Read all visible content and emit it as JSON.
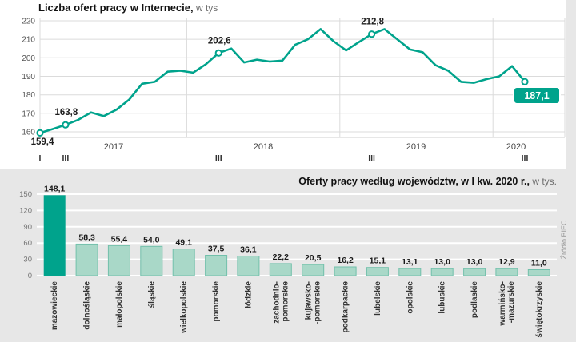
{
  "colors": {
    "teal": "#00A38C",
    "bar_fill": "#A9D8C8",
    "bar_stroke": "#72C0AB",
    "grid_line": "#DBDBDB",
    "white_grid": "#FFFFFF",
    "axis_line": "#CFCFCF",
    "text_dark": "#1A1A1A",
    "text_mid": "#444444",
    "text_gray": "#777777",
    "badge_text": "#FFFFFF"
  },
  "line_chart": {
    "title": "Liczba ofert pracy w Internecie,",
    "title_suffix": " w tys",
    "y_ticks": [
      220,
      210,
      200,
      190,
      180,
      170,
      160
    ],
    "years": [
      "2017",
      "2018",
      "2019",
      "2020"
    ],
    "x_ticks": [
      {
        "label": "I",
        "month": 0
      },
      {
        "label": "III",
        "month": 2
      },
      {
        "label": "III",
        "month": 14
      },
      {
        "label": "III",
        "month": 26
      },
      {
        "label": "III",
        "month": 38
      }
    ],
    "values": [
      159.4,
      161.5,
      163.8,
      166.5,
      170.5,
      168.5,
      172.0,
      177.5,
      186.0,
      187.0,
      192.5,
      193.0,
      192.0,
      196.5,
      202.6,
      205.0,
      197.5,
      199.0,
      198.0,
      198.5,
      207.0,
      210.0,
      215.5,
      209.0,
      204.0,
      208.5,
      212.8,
      215.5,
      210.0,
      204.5,
      203.0,
      196.0,
      193.0,
      187.0,
      186.5,
      188.5,
      190.0,
      195.5,
      187.1
    ],
    "annotations": [
      {
        "index": 0,
        "label": "159,4",
        "placement": "below"
      },
      {
        "index": 2,
        "label": "163,8",
        "placement": "above"
      },
      {
        "index": 14,
        "label": "202,6",
        "placement": "above"
      },
      {
        "index": 26,
        "label": "212,8",
        "placement": "above"
      },
      {
        "index": 38,
        "label": "187,1",
        "placement": "badge"
      }
    ]
  },
  "bar_chart": {
    "title": "Oferty pracy według województw, w I kw. 2020 r.,",
    "title_suffix": " w tys.",
    "y_ticks": [
      150,
      120,
      90,
      60,
      30,
      0
    ],
    "source": "Źródło BIEC",
    "bars": [
      {
        "name": [
          "mazowieckie"
        ],
        "value": 148.1,
        "label": "148,1",
        "highlight": true
      },
      {
        "name": [
          "dolnośląskie"
        ],
        "value": 58.3,
        "label": "58,3"
      },
      {
        "name": [
          "małopolskie"
        ],
        "value": 55.4,
        "label": "55,4"
      },
      {
        "name": [
          "śląskie"
        ],
        "value": 54.0,
        "label": "54,0"
      },
      {
        "name": [
          "wielkopolskie"
        ],
        "value": 49.1,
        "label": "49,1"
      },
      {
        "name": [
          "pomorskie"
        ],
        "value": 37.5,
        "label": "37,5"
      },
      {
        "name": [
          "łódzkie"
        ],
        "value": 36.1,
        "label": "36,1"
      },
      {
        "name": [
          "zachodnio-",
          "pomorskie"
        ],
        "value": 22.2,
        "label": "22,2"
      },
      {
        "name": [
          "kujawsko-",
          "-pomorskie"
        ],
        "value": 20.5,
        "label": "20,5"
      },
      {
        "name": [
          "podkarpackie"
        ],
        "value": 16.2,
        "label": "16,2"
      },
      {
        "name": [
          "lubelskie"
        ],
        "value": 15.1,
        "label": "15,1"
      },
      {
        "name": [
          "opolskie"
        ],
        "value": 13.1,
        "label": "13,1"
      },
      {
        "name": [
          "lubuskie"
        ],
        "value": 13.0,
        "label": "13,0"
      },
      {
        "name": [
          "podlaskie"
        ],
        "value": 13.0,
        "label": "13,0"
      },
      {
        "name": [
          "warmińsko-",
          "-mazurskie"
        ],
        "value": 12.9,
        "label": "12,9"
      },
      {
        "name": [
          "świętokrzyskie"
        ],
        "value": 11.0,
        "label": "11,0"
      }
    ]
  },
  "chart_data": [
    {
      "type": "line",
      "title": "Liczba ofert pracy w Internecie, w tys",
      "x": "monthly, Jan 2017 - Mar 2020",
      "series": [
        {
          "name": "oferty pracy (tys.)",
          "values": [
            159.4,
            161.5,
            163.8,
            166.5,
            170.5,
            168.5,
            172.0,
            177.5,
            186.0,
            187.0,
            192.5,
            193.0,
            192.0,
            196.5,
            202.6,
            205.0,
            197.5,
            199.0,
            198.0,
            198.5,
            207.0,
            210.0,
            215.5,
            209.0,
            204.0,
            208.5,
            212.8,
            215.5,
            210.0,
            204.5,
            203.0,
            196.0,
            193.0,
            187.0,
            186.5,
            188.5,
            190.0,
            195.5,
            187.1
          ]
        }
      ],
      "labeled_points": {
        "I 2017": 159.4,
        "III 2017": 163.8,
        "III 2018": 202.6,
        "III 2019": 212.8,
        "III 2020": 187.1
      },
      "ylim": [
        155,
        222
      ],
      "grid": true
    },
    {
      "type": "bar",
      "title": "Oferty pracy według województw, w I kw. 2020 r., w tys.",
      "categories": [
        "mazowieckie",
        "dolnośląskie",
        "małopolskie",
        "śląskie",
        "wielkopolskie",
        "pomorskie",
        "łódzkie",
        "zachodnio-pomorskie",
        "kujawsko-pomorskie",
        "podkarpackie",
        "lubelskie",
        "opolskie",
        "lubuskie",
        "podlaskie",
        "warmińsko-mazurskie",
        "świętokrzyskie"
      ],
      "values": [
        148.1,
        58.3,
        55.4,
        54.0,
        49.1,
        37.5,
        36.1,
        22.2,
        20.5,
        16.2,
        15.1,
        13.1,
        13.0,
        13.0,
        12.9,
        11.0
      ],
      "ylim": [
        0,
        150
      ],
      "source": "Źródło BIEC",
      "grid": true
    }
  ]
}
